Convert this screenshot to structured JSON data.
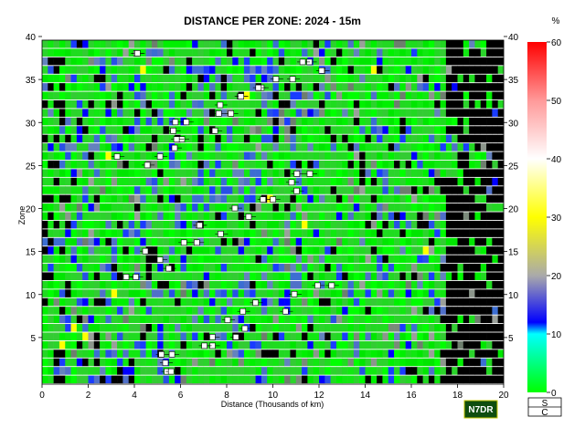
{
  "chart_data": {
    "type": "heatmap",
    "title": "DISTANCE PER ZONE: 2024 - 15m",
    "xlabel": "Distance (Thousands of km)",
    "ylabel": "Zone",
    "xlim": [
      0,
      20
    ],
    "ylim": [
      0,
      40
    ],
    "x_ticks": [
      "0",
      "2",
      "4",
      "6",
      "8",
      "10",
      "12",
      "14",
      "16",
      "18",
      "20"
    ],
    "y_ticks": [
      "5",
      "10",
      "15",
      "20",
      "25",
      "30",
      "35",
      "40"
    ],
    "x_bin_width": 0.25,
    "zones": 40,
    "colorbar": {
      "unit": "%",
      "range": [
        0,
        60
      ],
      "ticks": [
        "0",
        "10",
        "20",
        "30",
        "40",
        "50",
        "60"
      ],
      "stops": [
        {
          "value": 0,
          "color": "#00ff00"
        },
        {
          "value": 10,
          "color": "#00ffff"
        },
        {
          "value": 12,
          "color": "#0000ff"
        },
        {
          "value": 20,
          "color": "#aaaaaa"
        },
        {
          "value": 30,
          "color": "#ffff00"
        },
        {
          "value": 40,
          "color": "#ffffff"
        },
        {
          "value": 50,
          "color": "#ff9999"
        },
        {
          "value": 60,
          "color": "#ff0000"
        }
      ]
    },
    "no_data_color": "#000000",
    "legend_box": {
      "top": "S",
      "bottom": "C"
    },
    "callsign": "N7DR",
    "grid": false
  }
}
